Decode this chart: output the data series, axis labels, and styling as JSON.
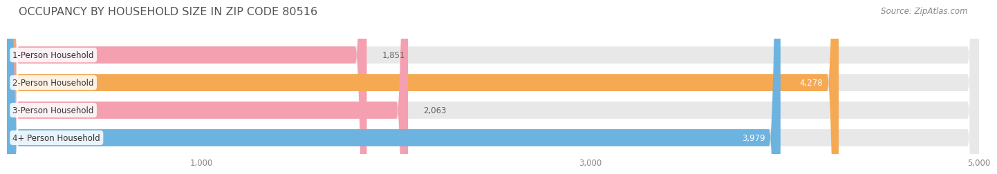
{
  "title": "OCCUPANCY BY HOUSEHOLD SIZE IN ZIP CODE 80516",
  "source": "Source: ZipAtlas.com",
  "categories": [
    "1-Person Household",
    "2-Person Household",
    "3-Person Household",
    "4+ Person Household"
  ],
  "values": [
    1851,
    4278,
    2063,
    3979
  ],
  "bar_colors": [
    "#f4a0b0",
    "#f5a952",
    "#f4a0b0",
    "#6db3e0"
  ],
  "background_color": "#ffffff",
  "bar_bg_color": "#e8e8e8",
  "xlim": [
    0,
    5000
  ],
  "xticks": [
    1000,
    3000,
    5000
  ],
  "bar_height": 0.62,
  "title_fontsize": 11.5,
  "label_fontsize": 8.5,
  "tick_fontsize": 8.5,
  "value_fontsize": 8.5,
  "source_fontsize": 8.5,
  "title_color": "#555555",
  "source_color": "#888888",
  "label_bg_color": "#ffffff",
  "value_outside_color": "#666666",
  "value_inside_color": "#ffffff",
  "grid_color": "#ffffff",
  "bar_bg_rounding": 200
}
